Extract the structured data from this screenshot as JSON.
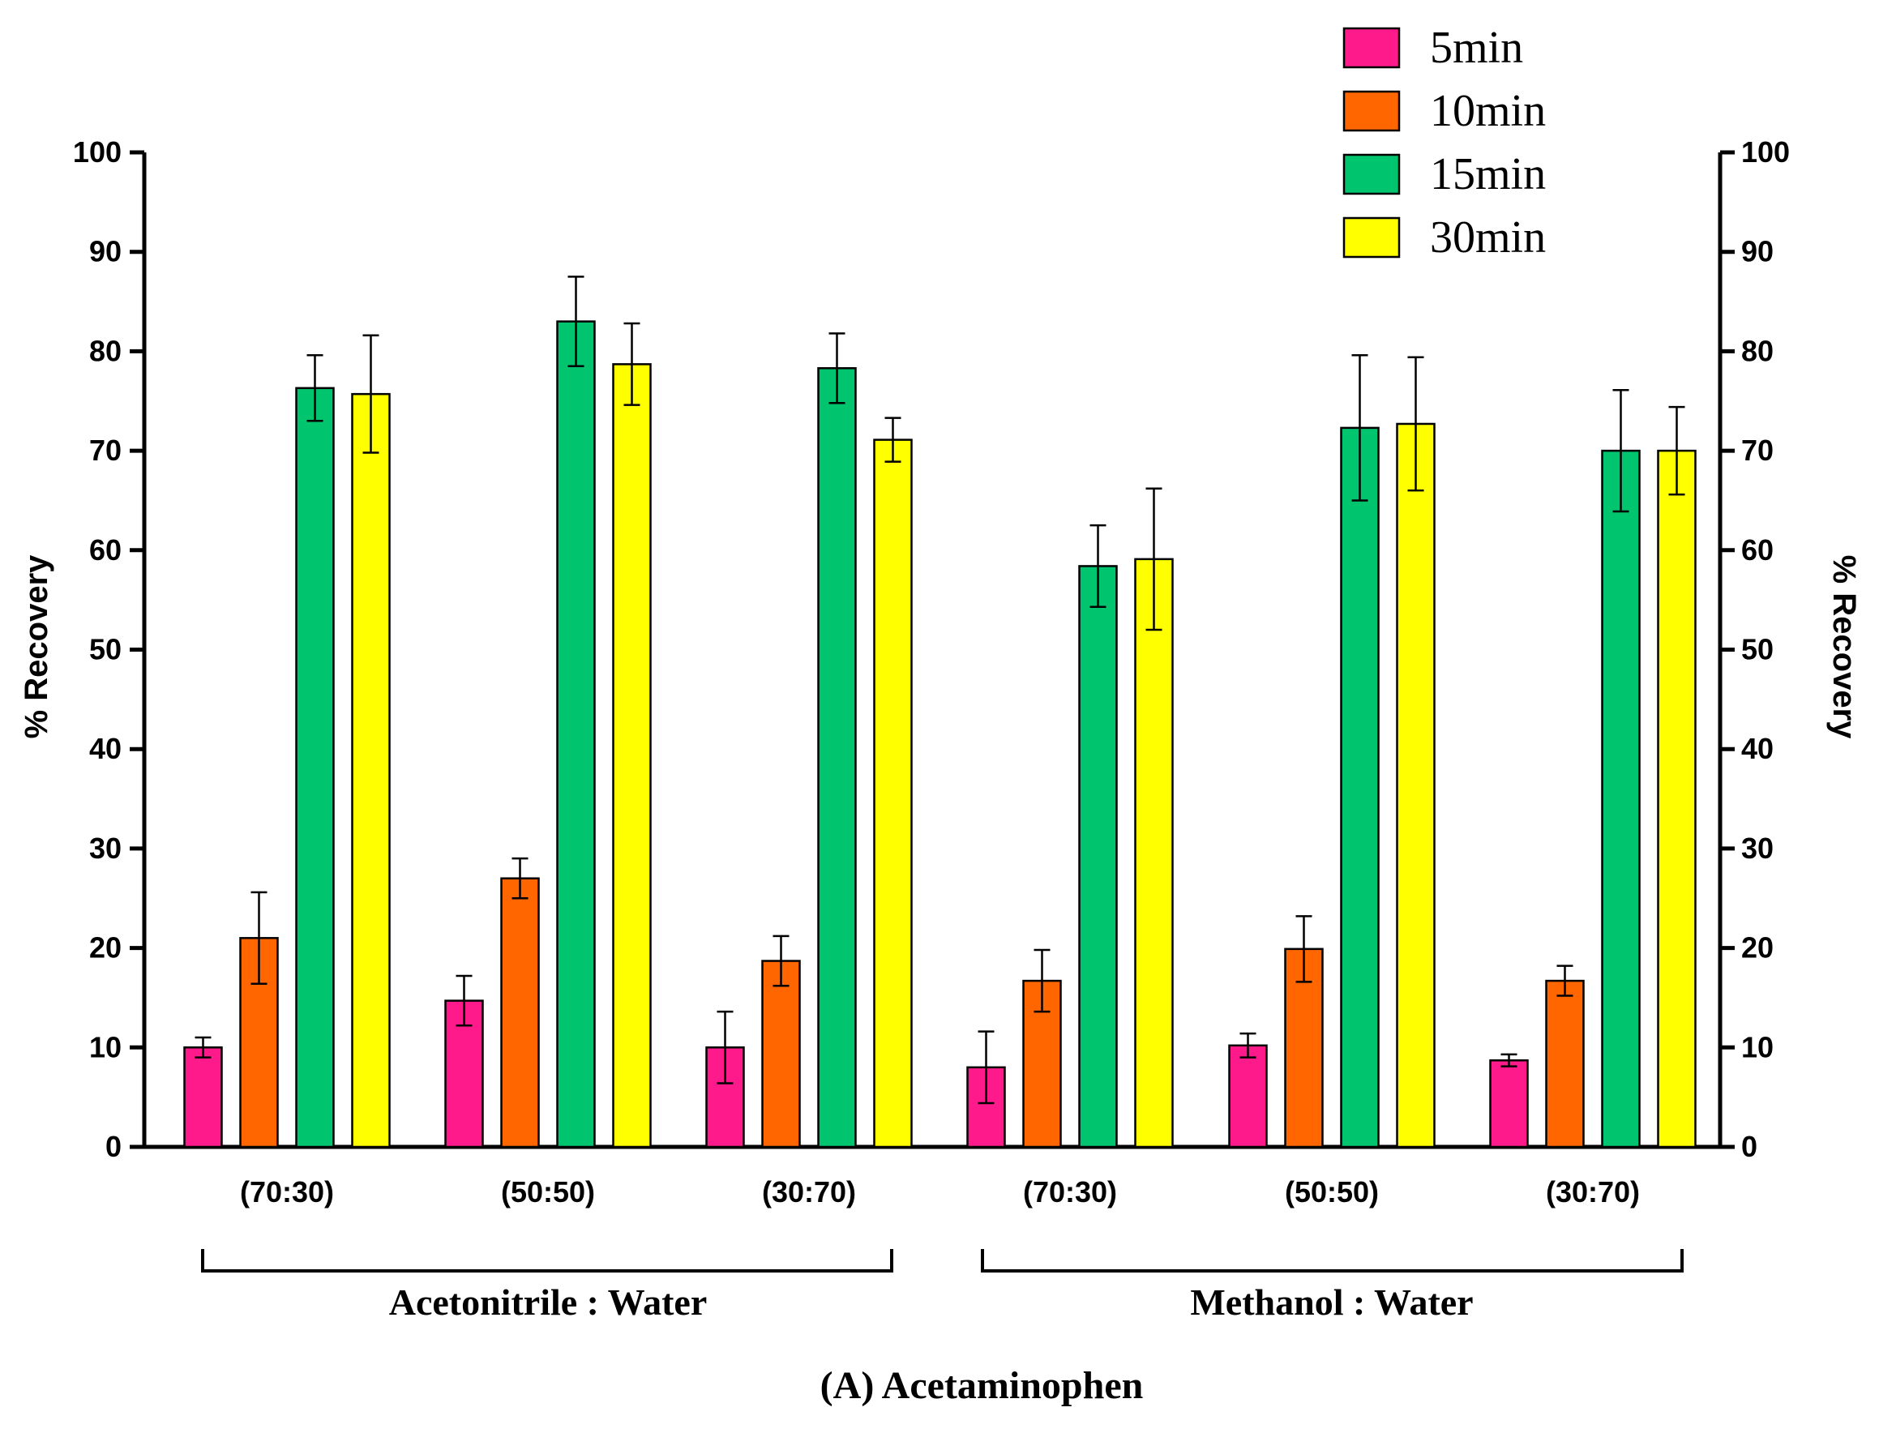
{
  "chart_data": {
    "type": "bar",
    "title": "(A) Acetaminophen",
    "ylabel": "% Recovery",
    "ylabel_right": "% Recovery",
    "ylim": [
      0,
      100
    ],
    "yticks": [
      0,
      10,
      20,
      30,
      40,
      50,
      60,
      70,
      80,
      90,
      100
    ],
    "grid": false,
    "legend_position": "top-right",
    "categories": [
      "(70:30)",
      "(50:50)",
      "(30:70)",
      "(70:30)",
      "(50:50)",
      "(30:70)"
    ],
    "groups": [
      {
        "label": "Acetonitrile : Water",
        "categories": [
          0,
          1,
          2
        ]
      },
      {
        "label": "Methanol : Water",
        "categories": [
          3,
          4,
          5
        ]
      }
    ],
    "series": [
      {
        "name": "5min",
        "color": "#ff1a8c",
        "values": [
          10,
          14.7,
          10,
          8,
          10.2,
          8.7
        ],
        "errors": [
          1,
          2.5,
          3.6,
          3.6,
          1.2,
          0.6
        ]
      },
      {
        "name": "10min",
        "color": "#ff6600",
        "values": [
          21,
          27,
          18.7,
          16.7,
          19.9,
          16.7
        ],
        "errors": [
          4.6,
          2,
          2.5,
          3.1,
          3.3,
          1.5
        ]
      },
      {
        "name": "15min",
        "color": "#00c46e",
        "values": [
          76.3,
          83,
          78.3,
          58.4,
          72.3,
          70
        ],
        "errors": [
          3.3,
          4.5,
          3.5,
          4.1,
          7.3,
          6.1
        ]
      },
      {
        "name": "30min",
        "color": "#ffff00",
        "values": [
          75.7,
          78.7,
          71.1,
          59.1,
          72.7,
          70
        ],
        "errors": [
          5.9,
          4.1,
          2.2,
          7.1,
          6.7,
          4.4
        ]
      }
    ]
  }
}
